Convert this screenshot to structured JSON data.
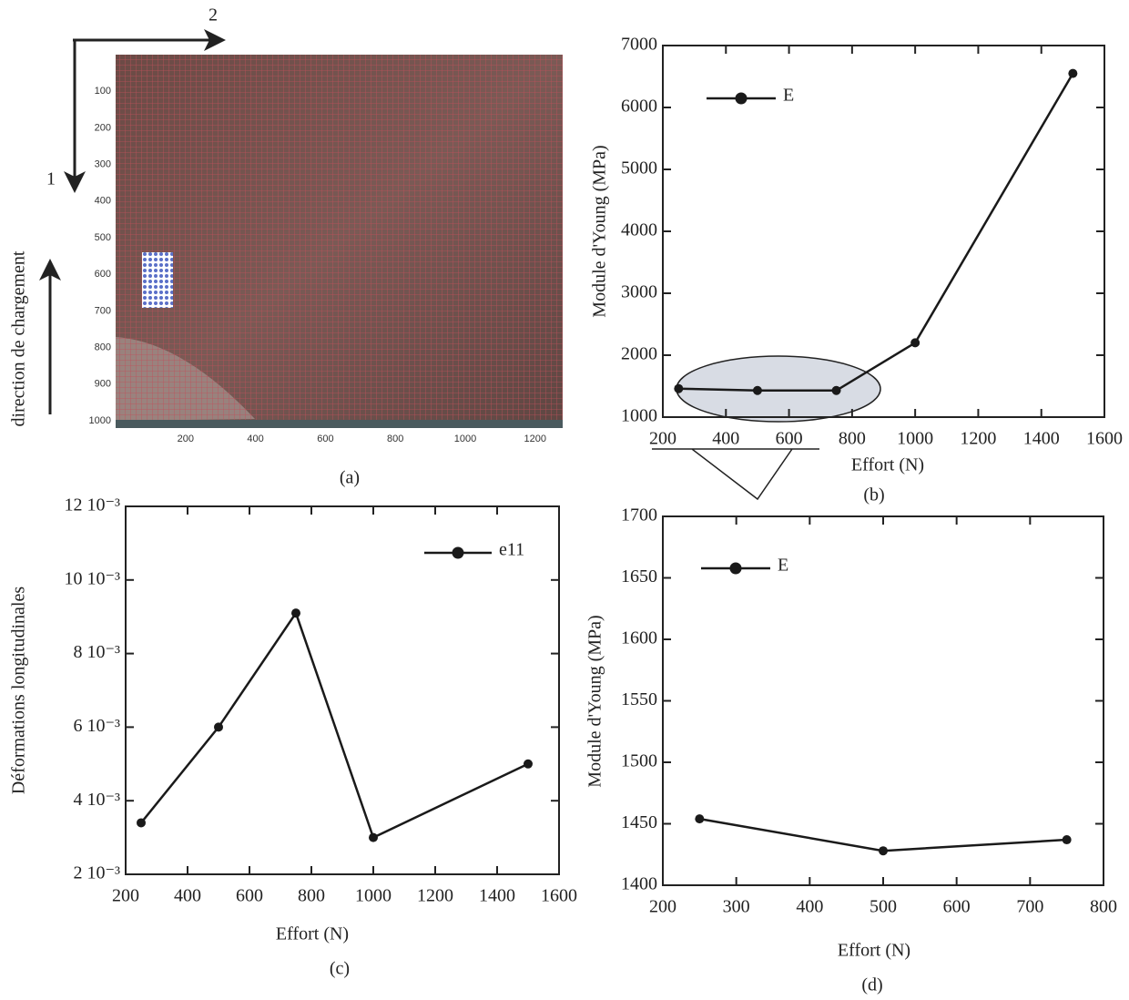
{
  "panel_a": {
    "caption": "(a)",
    "axis_1": "1",
    "axis_2": "2",
    "loading_label": "direction de chargement",
    "xticks": [
      200,
      400,
      600,
      800,
      1000,
      1200
    ],
    "yticks": [
      100,
      200,
      300,
      400,
      500,
      600,
      700,
      800,
      900,
      1000
    ]
  },
  "chart_data": [
    {
      "type": "line",
      "caption": "(b)",
      "x_label": "Effort (N)",
      "y_label": "Module d'Young (MPa)",
      "xlim": [
        200,
        1600
      ],
      "xticks": [
        200,
        400,
        600,
        800,
        1000,
        1200,
        1400,
        1600
      ],
      "ylim": [
        1000,
        7000
      ],
      "yticks": [
        1000,
        2000,
        3000,
        4000,
        5000,
        6000,
        7000
      ],
      "series": [
        {
          "name": "E",
          "color": "#1a1a1a",
          "x": [
            250,
            500,
            750,
            1000,
            1500
          ],
          "values": [
            1460,
            1430,
            1430,
            2200,
            6550
          ]
        }
      ]
    },
    {
      "type": "line",
      "caption": "(c)",
      "x_label": "Effort (N)",
      "y_label": "Déformations longitudinales",
      "xlim": [
        200,
        1600
      ],
      "xticks": [
        200,
        400,
        600,
        800,
        1000,
        1200,
        1400,
        1600
      ],
      "ylim": [
        0.002,
        0.012
      ],
      "yticks": [
        {
          "value": 0.002,
          "label": "2 10⁻³"
        },
        {
          "value": 0.004,
          "label": "4 10⁻³"
        },
        {
          "value": 0.006,
          "label": "6 10⁻³"
        },
        {
          "value": 0.008,
          "label": "8 10⁻³"
        },
        {
          "value": 0.01,
          "label": "10 10⁻³"
        },
        {
          "value": 0.012,
          "label": "12 10⁻³"
        }
      ],
      "series": [
        {
          "name": "e11",
          "color": "#1a1a1a",
          "x": [
            250,
            500,
            750,
            1000,
            1500
          ],
          "values": [
            0.0034,
            0.006,
            0.0091,
            0.003,
            0.005
          ]
        }
      ]
    },
    {
      "type": "line",
      "caption": "(d)",
      "x_label": "Effort (N)",
      "y_label": "Module d'Young (MPa)",
      "xlim": [
        200,
        800
      ],
      "xticks": [
        200,
        300,
        400,
        500,
        600,
        700,
        800
      ],
      "ylim": [
        1400,
        1700
      ],
      "yticks": [
        1400,
        1450,
        1500,
        1550,
        1600,
        1650,
        1700
      ],
      "series": [
        {
          "name": "E",
          "color": "#1a1a1a",
          "x": [
            250,
            500,
            750
          ],
          "values": [
            1454,
            1428,
            1437
          ]
        }
      ]
    }
  ]
}
